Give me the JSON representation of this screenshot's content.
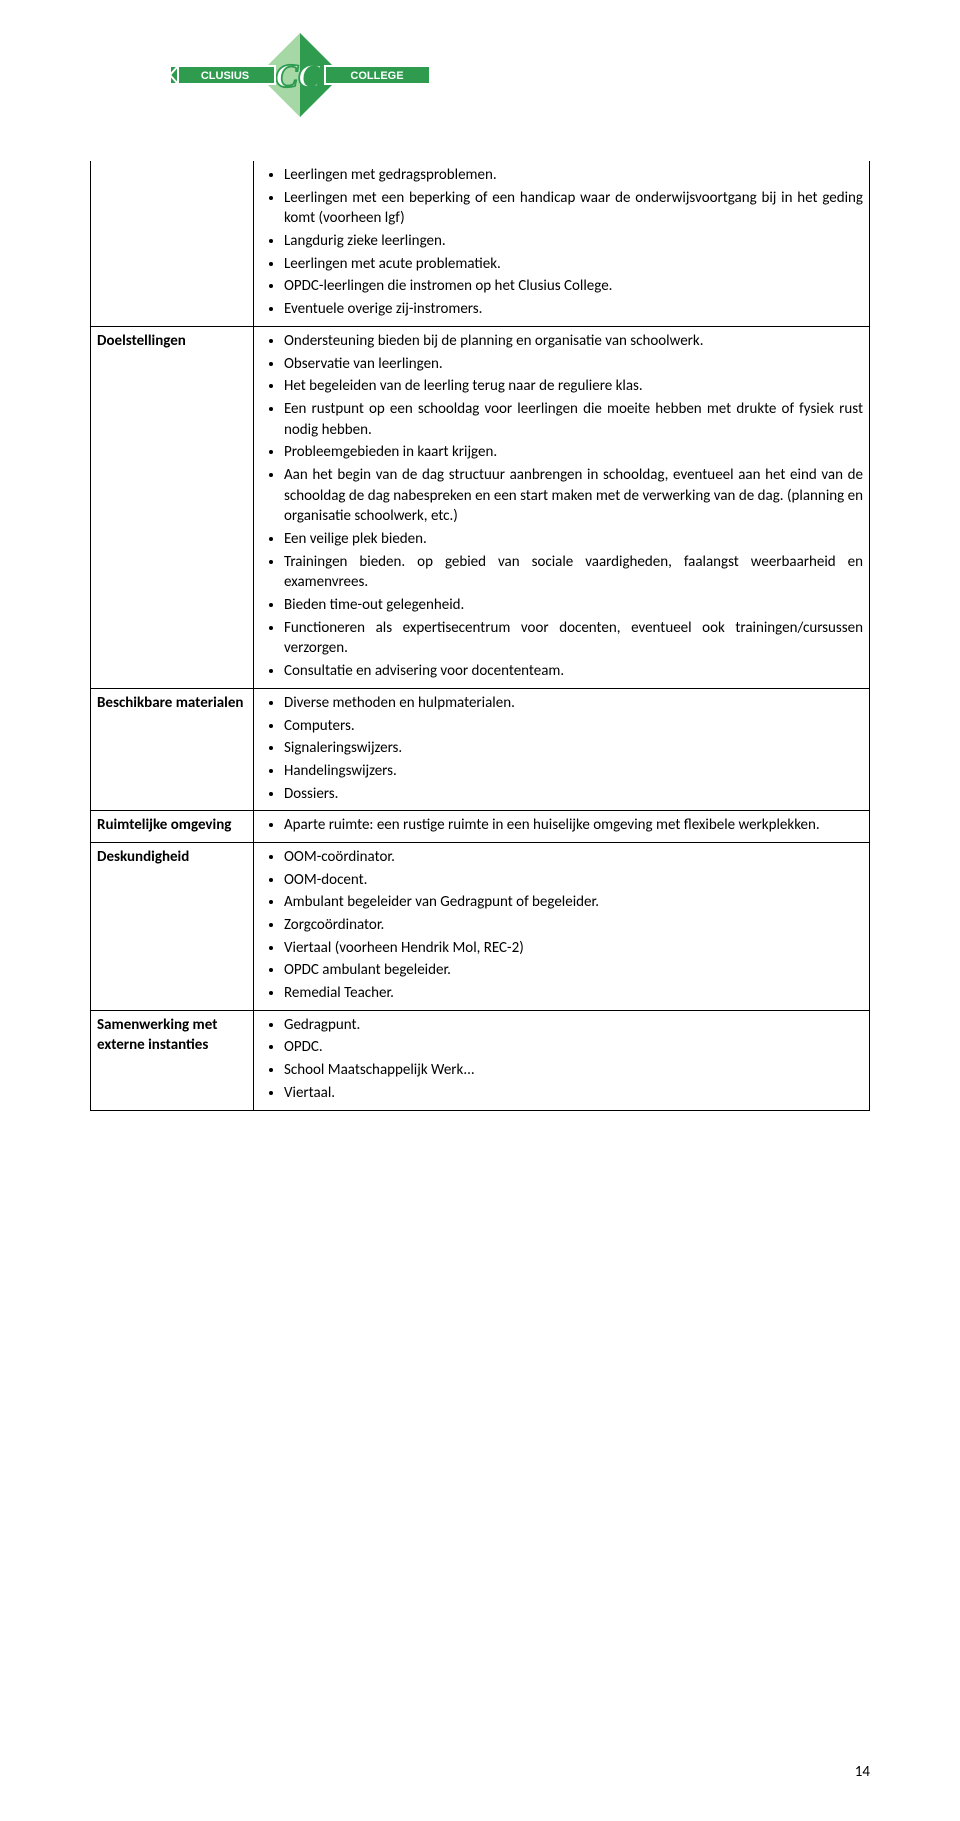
{
  "logo": {
    "text_left": "CLUSIUS",
    "text_right": "COLLEGE",
    "banner_primary": "#2e9b4f",
    "banner_border": "#ffffff",
    "diamond_light": "#a6d8a6",
    "diamond_dark": "#2e9b4f",
    "cc_fill": "#ffffff",
    "cc_outline": "#2e9b4f"
  },
  "rows": [
    {
      "label": "",
      "continuation": true,
      "items": [
        "Leerlingen met gedragsproblemen.",
        "Leerlingen met een beperking of een handicap waar de onderwijsvoortgang bij in het geding komt (voorheen lgf)",
        "Langdurig zieke leerlingen.",
        "Leerlingen met acute problematiek.",
        "OPDC-leerlingen die instromen op het Clusius College.",
        "Eventuele overige zij-instromers."
      ]
    },
    {
      "label": "Doelstellingen",
      "items": [
        "Ondersteuning bieden bij de planning en organisatie van schoolwerk.",
        "Observatie van leerlingen.",
        "Het begeleiden van de leerling terug naar de reguliere klas.",
        "Een rustpunt op een schooldag voor leerlingen die moeite hebben met drukte of fysiek rust nodig hebben.",
        "Probleemgebieden in kaart krijgen.",
        "Aan het begin van de dag structuur aanbrengen in schooldag, eventueel aan het eind van de schooldag de dag nabespreken en een start maken met de verwerking van de dag. (planning en organisatie schoolwerk, etc.)",
        "Een veilige plek bieden.",
        "Trainingen bieden. op gebied van sociale vaardigheden, faalangst weerbaarheid en examenvrees.",
        "Bieden time-out gelegenheid.",
        "Functioneren als expertisecentrum voor docenten, eventueel ook trainingen/cursussen verzorgen.",
        "Consultatie en advisering voor docententeam."
      ]
    },
    {
      "label": "Beschikbare materialen",
      "items": [
        "Diverse methoden en hulpmaterialen.",
        "Computers.",
        "Signaleringswijzers.",
        "Handelingswijzers.",
        "Dossiers."
      ]
    },
    {
      "label": "Ruimtelijke omgeving",
      "items": [
        "Aparte ruimte: een rustige ruimte in een huiselijke omgeving met flexibele werkplekken."
      ]
    },
    {
      "label": "Deskundigheid",
      "items": [
        "OOM-coördinator.",
        "OOM-docent.",
        "Ambulant begeleider van Gedragpunt of begeleider.",
        "Zorgcoördinator.",
        "Viertaal (voorheen Hendrik Mol, REC-2)",
        "OPDC ambulant begeleider.",
        "Remedial Teacher."
      ]
    },
    {
      "label": "Samenwerking met externe instanties",
      "items": [
        "Gedragpunt.",
        "OPDC.",
        "School Maatschappelijk Werk...",
        "Viertaal."
      ]
    }
  ],
  "page_number": "14"
}
